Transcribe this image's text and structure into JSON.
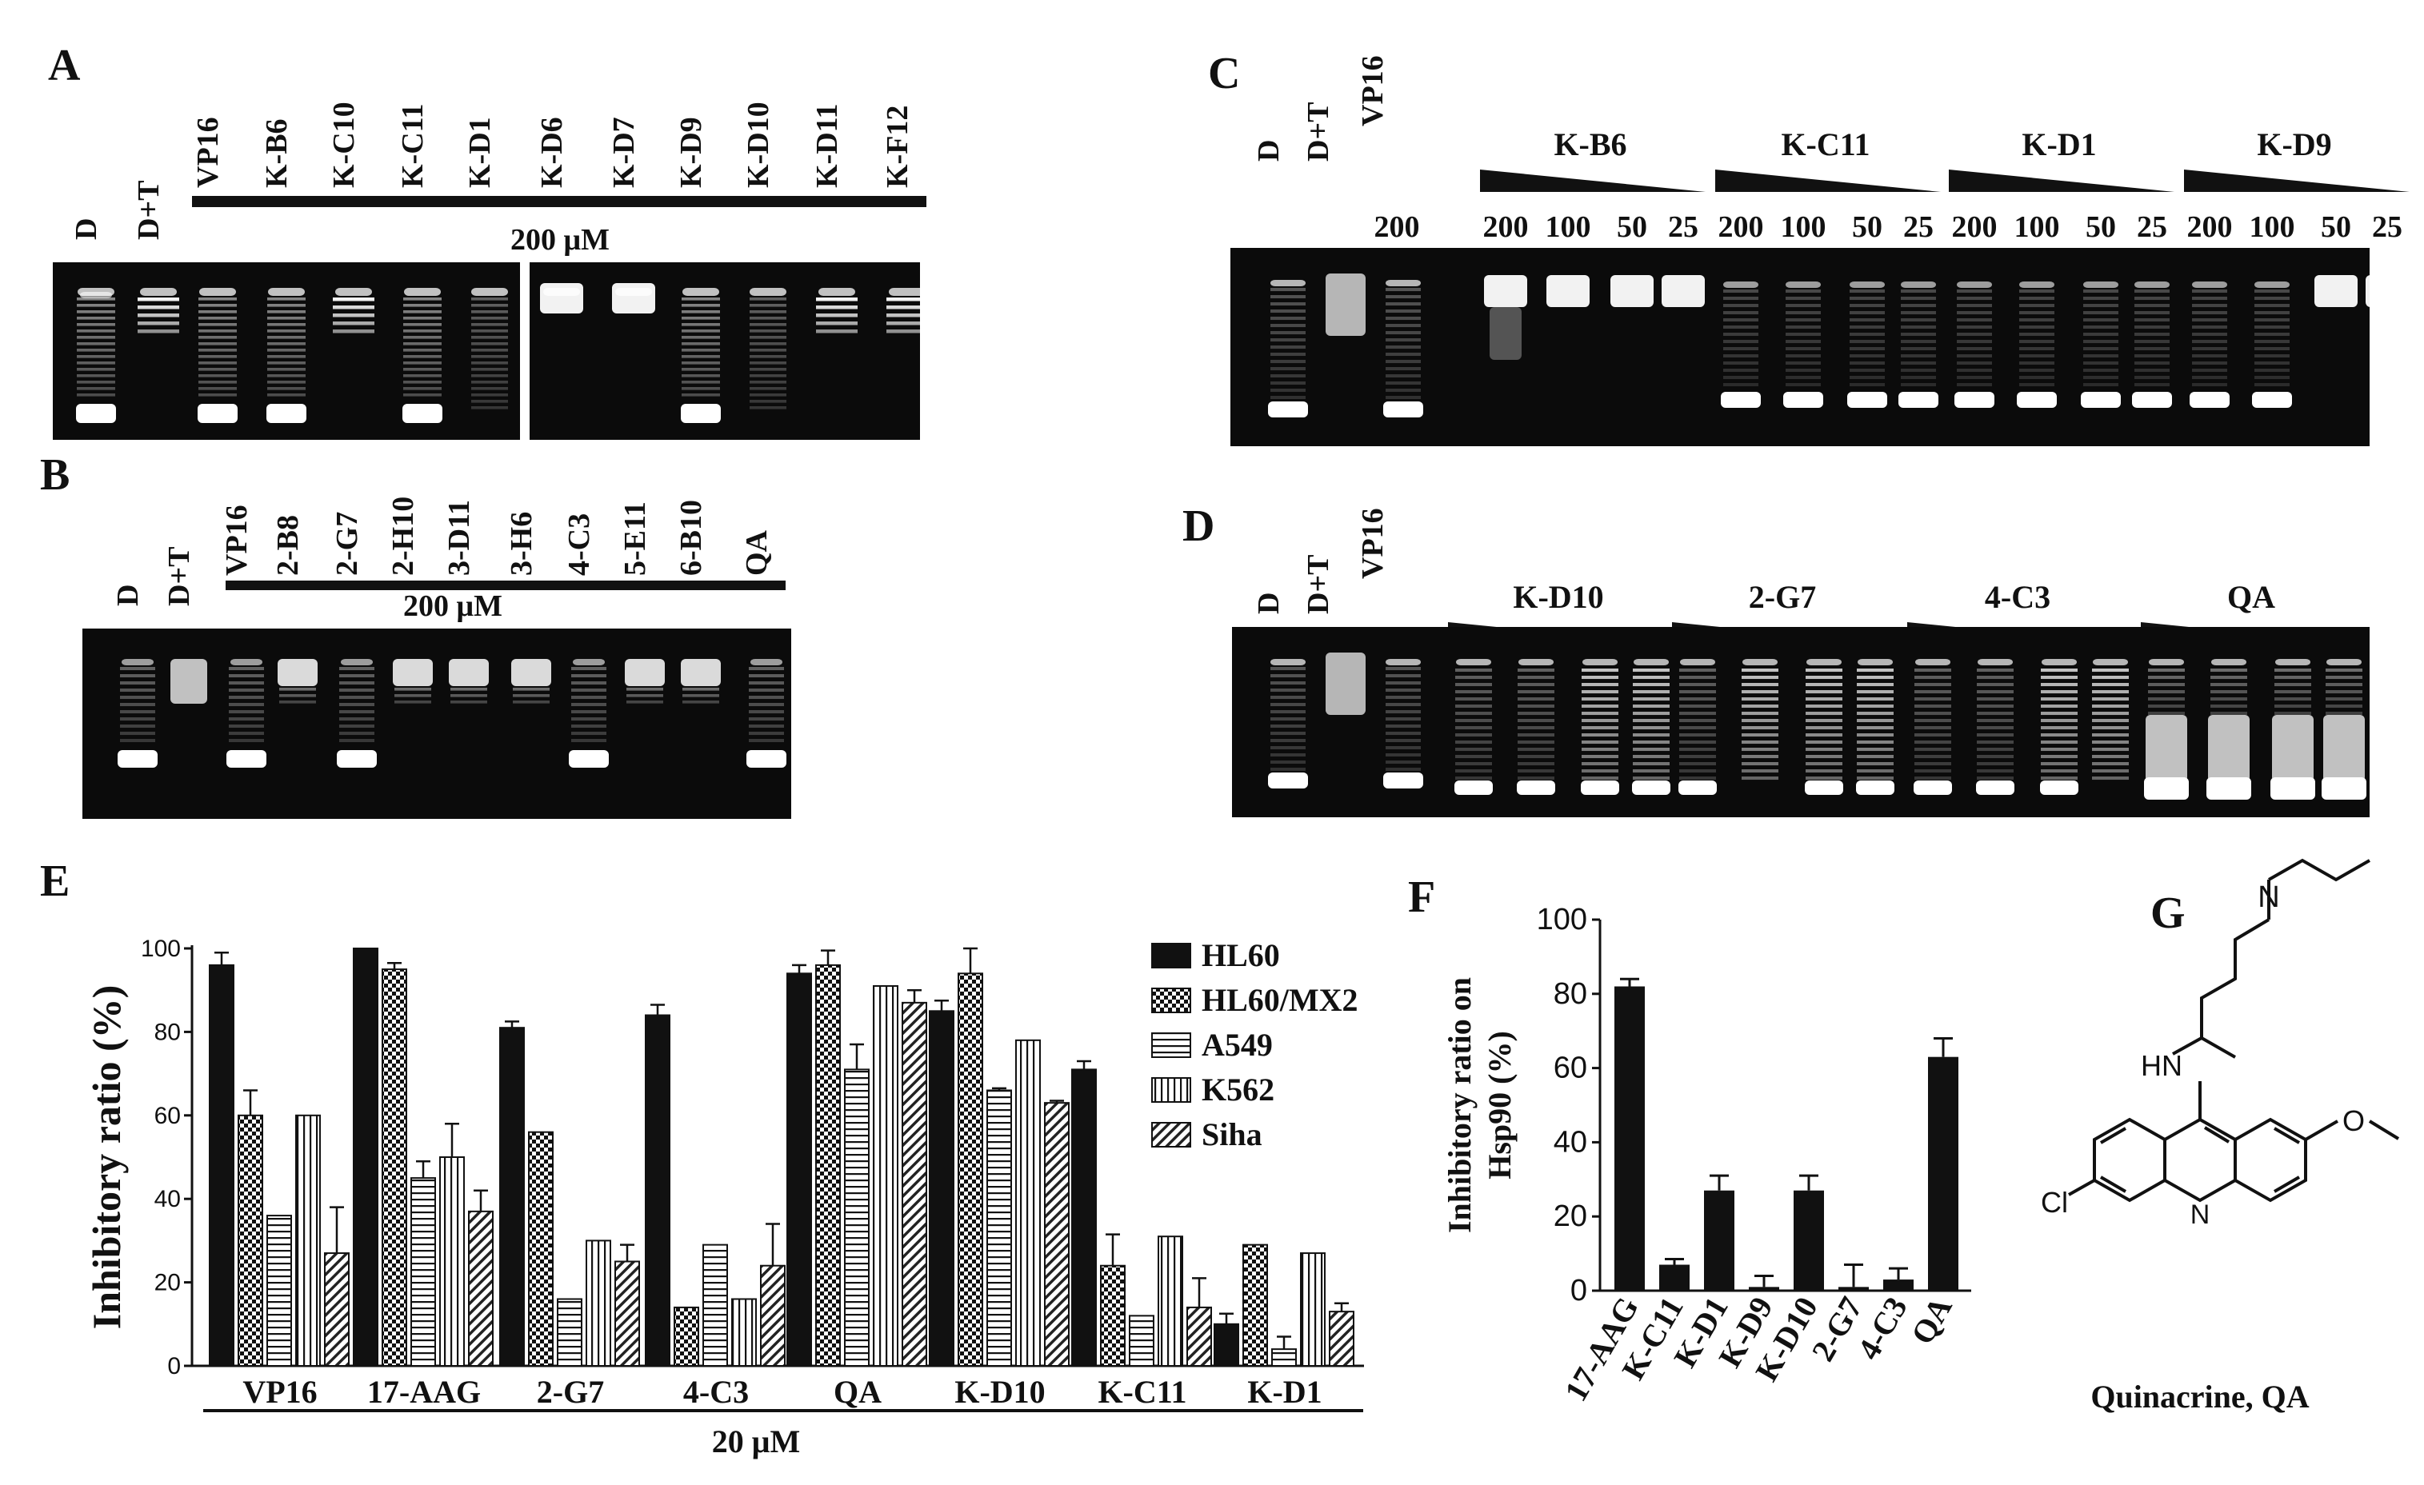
{
  "panels": {
    "A": {
      "letter": "A",
      "lanes": [
        "D",
        "D+T",
        "VP16",
        "K-B6",
        "K-C10",
        "K-C11",
        "K-D1",
        "K-D6",
        "K-D7",
        "K-D9",
        "K-D10",
        "K-D11",
        "K-F12"
      ],
      "concentration": "200 μM"
    },
    "B": {
      "letter": "B",
      "lanes": [
        "D",
        "D+T",
        "VP16",
        "2-B8",
        "2-G7",
        "2-H10",
        "3-D11",
        "3-H6",
        "4-C3",
        "5-E11",
        "6-B10",
        "QA"
      ],
      "concentration": "200 μM"
    },
    "C": {
      "letter": "C",
      "controls": [
        "D",
        "D+T",
        "VP16"
      ],
      "vp16_dose": "200",
      "groups": [
        "K-B6",
        "K-C11",
        "K-D1",
        "K-D9"
      ],
      "doses": [
        "200",
        "100",
        "50",
        "25"
      ]
    },
    "D": {
      "letter": "D",
      "controls": [
        "D",
        "D+T",
        "VP16"
      ],
      "vp16_dose": "200",
      "groups": [
        "K-D10",
        "2-G7",
        "4-C3",
        "QA"
      ],
      "doses": [
        "200",
        "100",
        "50",
        "25"
      ]
    },
    "E": {
      "letter": "E"
    },
    "F": {
      "letter": "F"
    },
    "G": {
      "letter": "G",
      "caption": "Quinacrine, QA",
      "atoms": {
        "N_amine": "N",
        "NH": "HN",
        "N_ring": "N",
        "Cl": "Cl"
      }
    }
  },
  "chart_data": [
    {
      "panel": "E",
      "type": "bar",
      "ylabel": "Inhibitory ratio (%)",
      "xlabel": "20 μM",
      "ylim": [
        0,
        100
      ],
      "yticks": [
        0,
        20,
        40,
        60,
        80,
        100
      ],
      "categories": [
        "VP16",
        "17-AAG",
        "2-G7",
        "4-C3",
        "QA",
        "K-D10",
        "K-C11",
        "K-D1"
      ],
      "legend_position": "right",
      "series": [
        {
          "name": "HL60",
          "pattern": "solid",
          "values": [
            96,
            100,
            81,
            84,
            94,
            85,
            71,
            10
          ],
          "errors": [
            3,
            0,
            1.5,
            2.5,
            2,
            2.5,
            2,
            2.5
          ]
        },
        {
          "name": "HL60/MX2",
          "pattern": "checker",
          "values": [
            60,
            95,
            56,
            14,
            96,
            94,
            24,
            29
          ],
          "errors": [
            6,
            1.5,
            0,
            0,
            3.5,
            6,
            7.5,
            0
          ]
        },
        {
          "name": "A549",
          "pattern": "horizontal",
          "values": [
            36,
            45,
            16,
            29,
            71,
            66,
            12,
            4
          ],
          "errors": [
            0,
            4,
            0,
            0,
            6,
            0.5,
            0,
            3
          ]
        },
        {
          "name": "K562",
          "pattern": "vertical",
          "values": [
            60,
            50,
            30,
            16,
            91,
            78,
            31,
            27
          ],
          "errors": [
            0,
            8,
            0,
            0,
            0,
            0,
            0,
            0
          ]
        },
        {
          "name": "Siha",
          "pattern": "diagonal",
          "values": [
            27,
            37,
            25,
            24,
            87,
            63,
            14,
            13
          ],
          "errors": [
            11,
            5,
            4,
            10,
            3,
            0.5,
            7,
            2
          ]
        }
      ]
    },
    {
      "panel": "F",
      "type": "bar",
      "ylabel_lines": [
        "Inhibitory ratio on",
        "Hsp90 (%)"
      ],
      "ylim": [
        0,
        100
      ],
      "yticks": [
        0,
        20,
        40,
        60,
        80,
        100
      ],
      "categories": [
        "17-AAG",
        "K-C11",
        "K-D1",
        "K-D9",
        "K-D10",
        "2-G7",
        "4-C3",
        "QA"
      ],
      "series": [
        {
          "values": [
            82,
            7,
            27,
            1,
            27,
            1,
            3,
            63
          ],
          "errors": [
            2,
            1.5,
            4,
            3,
            4,
            6,
            3,
            5
          ]
        }
      ]
    }
  ]
}
